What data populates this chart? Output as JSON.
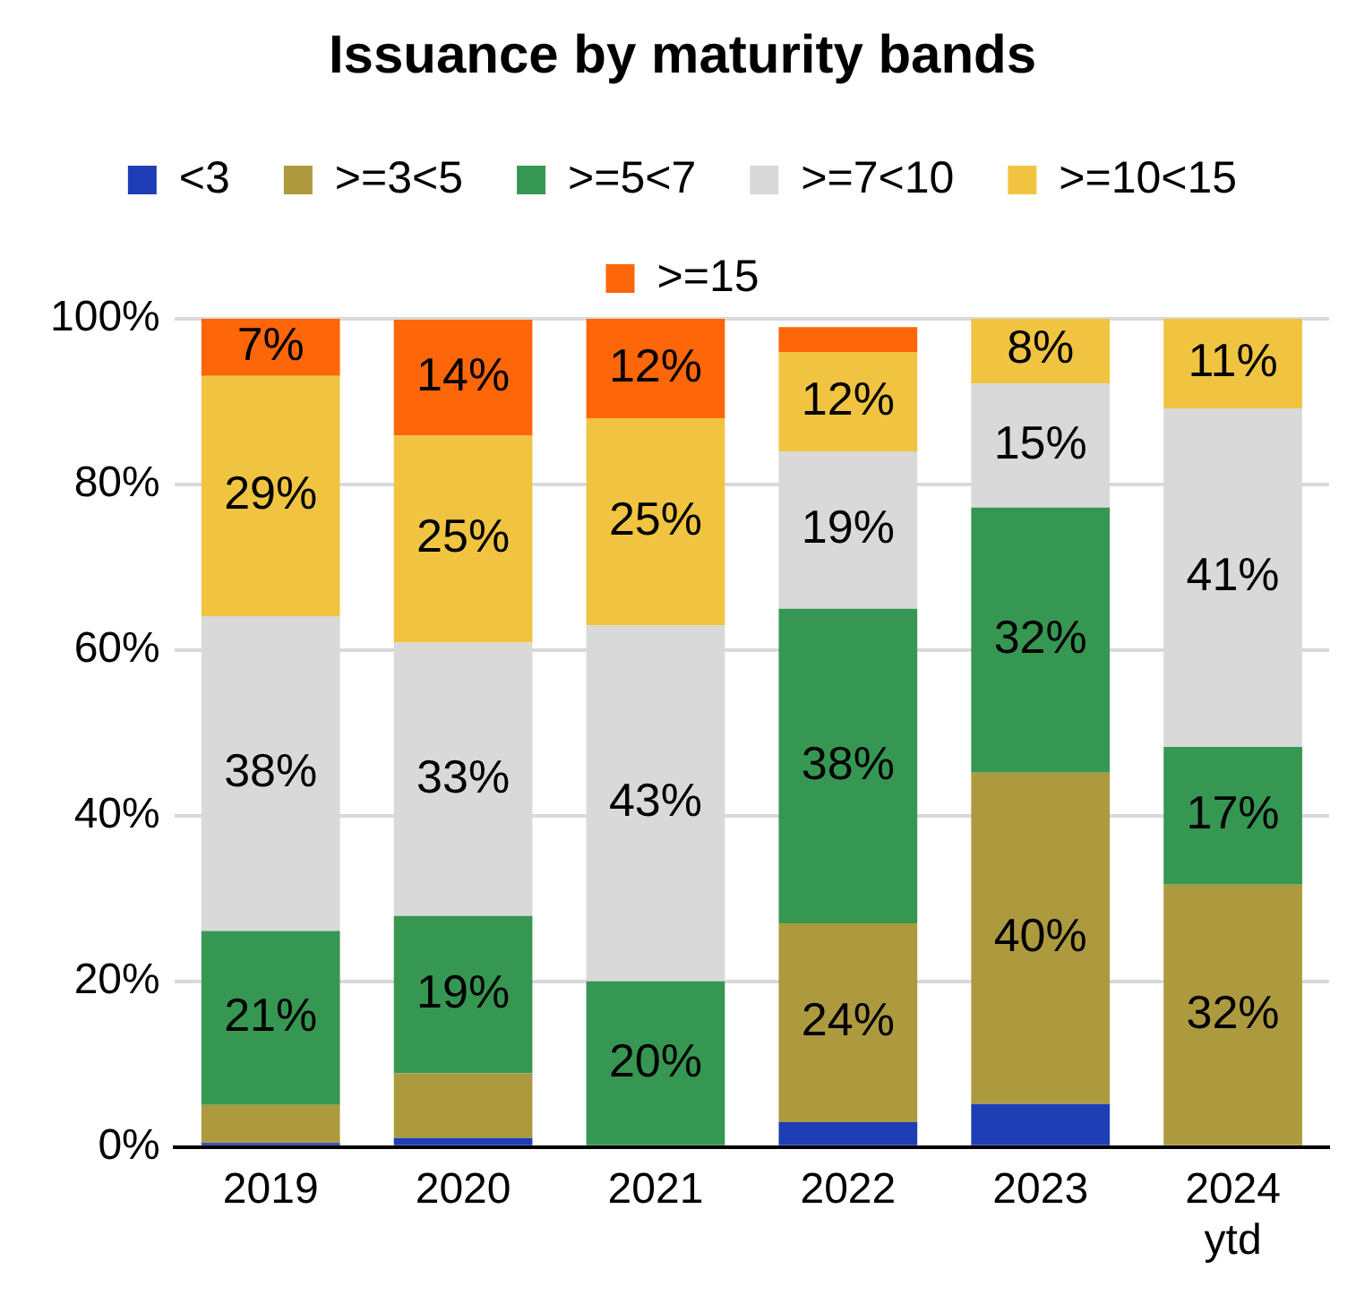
{
  "chart_data": {
    "type": "bar",
    "title": "Issuance by maturity bands",
    "stacked": true,
    "categories": [
      "2019",
      "2020",
      "2021",
      "2022",
      "2023",
      "2024\nytd"
    ],
    "series": [
      {
        "name": "<3",
        "color": "#1f3db5",
        "values": [
          0.5,
          1.1,
          0,
          3,
          5.2,
          0
        ],
        "value_labels": [
          null,
          null,
          null,
          null,
          null,
          null
        ]
      },
      {
        "name": ">=3<5",
        "color": "#ad9a3f",
        "values": [
          4.6,
          7.8,
          0,
          24,
          40,
          31.7
        ],
        "value_labels": [
          null,
          null,
          null,
          "24%",
          "40%",
          "32%"
        ]
      },
      {
        "name": ">=5<7",
        "color": "#369753",
        "values": [
          21,
          19,
          20,
          38,
          32,
          16.6
        ],
        "value_labels": [
          "21%",
          "19%",
          "20%",
          "38%",
          "32%",
          "17%"
        ]
      },
      {
        "name": ">=7<10",
        "color": "#d9d9d9",
        "values": [
          38,
          33,
          43,
          19,
          15,
          40.9
        ],
        "value_labels": [
          "38%",
          "33%",
          "43%",
          "19%",
          "15%",
          "41%"
        ]
      },
      {
        "name": ">=10<15",
        "color": "#f0c440",
        "values": [
          29,
          25,
          25,
          12,
          8,
          10.8
        ],
        "value_labels": [
          "29%",
          "25%",
          "25%",
          "12%",
          "8%",
          "11%"
        ]
      },
      {
        "name": ">=15",
        "color": "#fe660a",
        "values": [
          7,
          14,
          12,
          3,
          0,
          0
        ],
        "value_labels": [
          "7%",
          "14%",
          "12%",
          null,
          null,
          null
        ]
      }
    ],
    "ylim": [
      0,
      100
    ],
    "yticks": [
      {
        "value": 0,
        "label": "0%"
      },
      {
        "value": 20,
        "label": "20%"
      },
      {
        "value": 40,
        "label": "40%"
      },
      {
        "value": 60,
        "label": "60%"
      },
      {
        "value": 80,
        "label": "80%"
      },
      {
        "value": 100,
        "label": "100%"
      }
    ],
    "grid": "y",
    "legend": "top"
  }
}
